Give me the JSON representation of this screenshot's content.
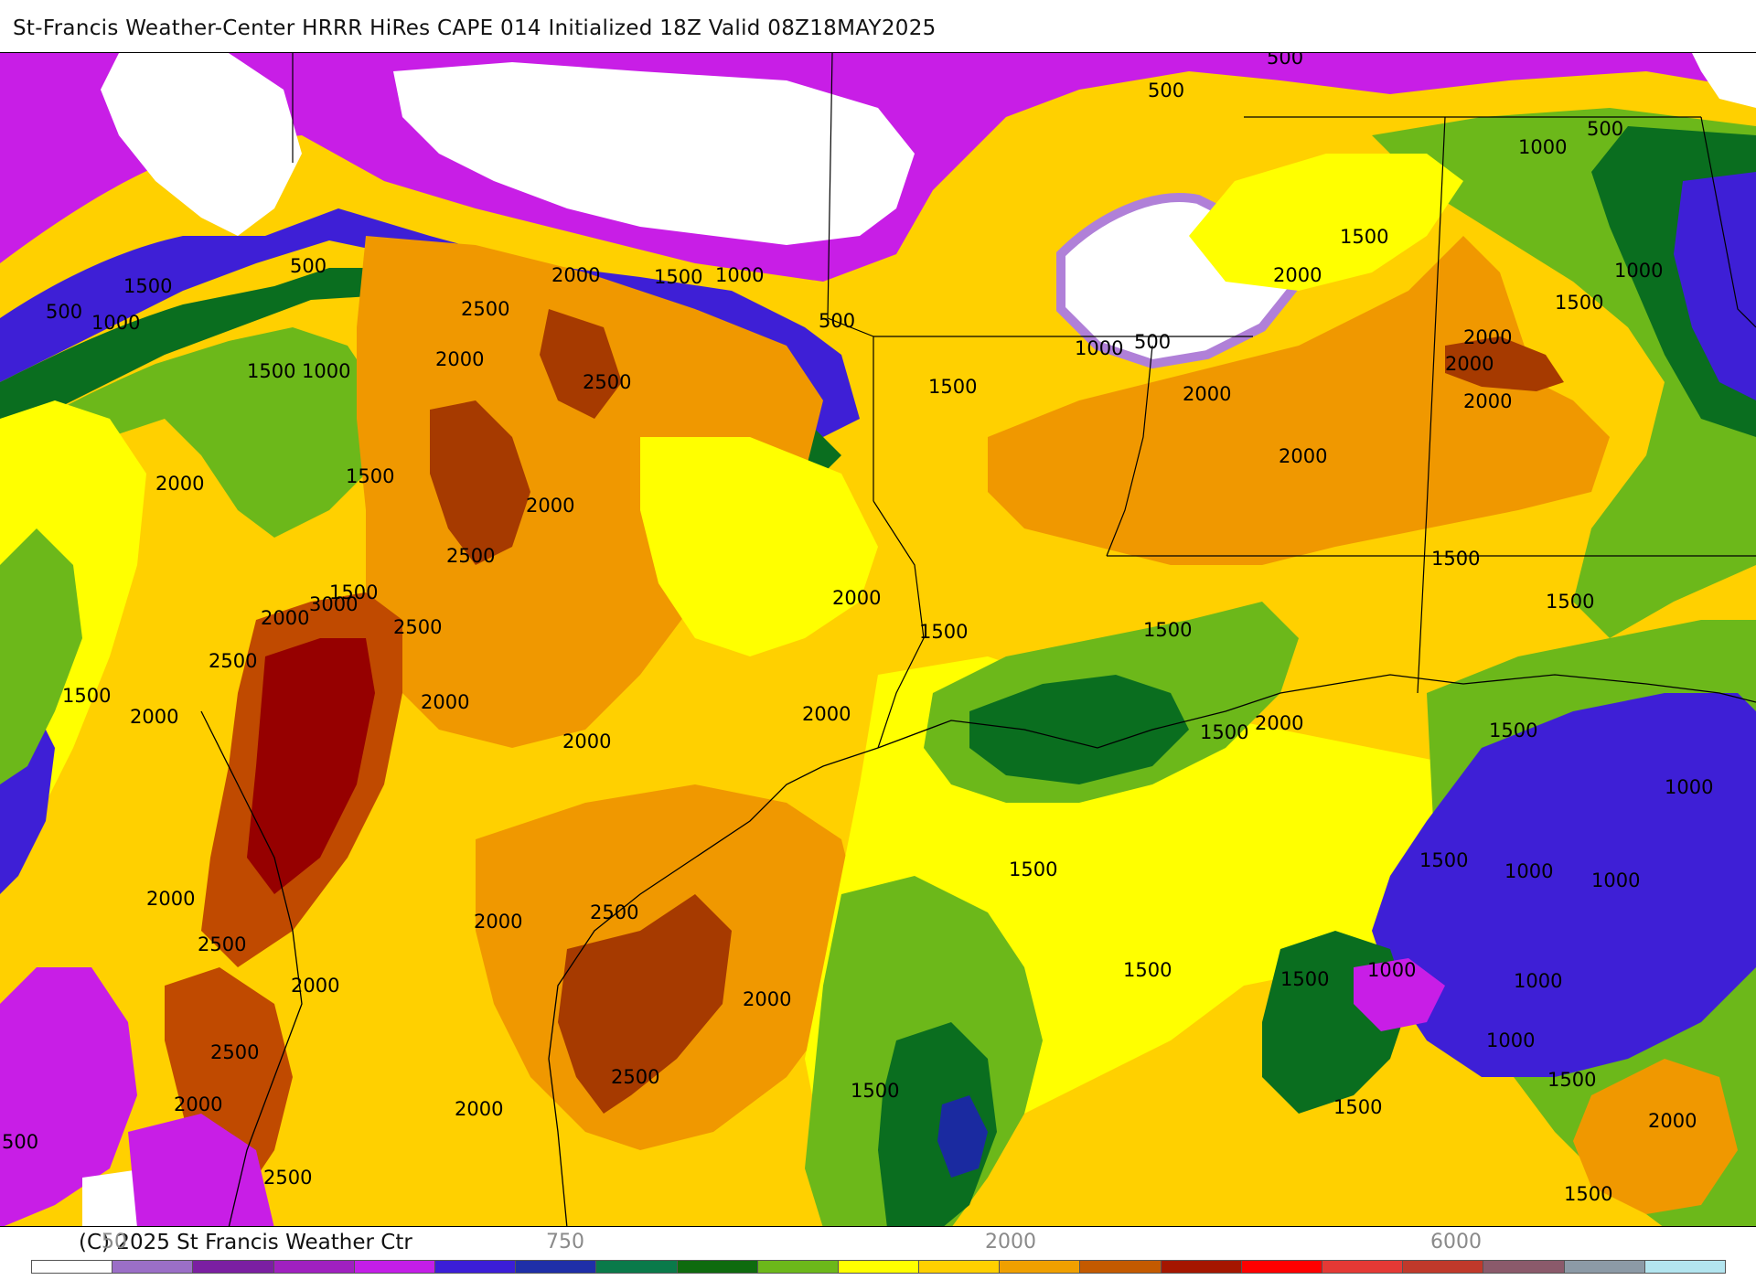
{
  "title": "St-Francis Weather-Center HRRR HiRes CAPE  014 Initialized  18Z Valid 08Z18MAY2025",
  "copyright": "(C) 2025 St Francis Weather Ctr",
  "map": {
    "product": "CAPE",
    "contour_labels": [
      {
        "text": "500"
      },
      {
        "text": "500"
      },
      {
        "text": "500"
      },
      {
        "text": "500"
      },
      {
        "text": "500"
      },
      {
        "text": "500"
      },
      {
        "text": "500"
      },
      {
        "text": "500"
      },
      {
        "text": "1000"
      },
      {
        "text": "1000"
      },
      {
        "text": "1000"
      },
      {
        "text": "1000"
      },
      {
        "text": "1000"
      },
      {
        "text": "1000"
      },
      {
        "text": "1000"
      },
      {
        "text": "1000"
      },
      {
        "text": "1000"
      },
      {
        "text": "1000"
      },
      {
        "text": "1000"
      },
      {
        "text": "1000"
      },
      {
        "text": "1500"
      },
      {
        "text": "1500"
      },
      {
        "text": "1500"
      },
      {
        "text": "1500"
      },
      {
        "text": "1500"
      },
      {
        "text": "1500"
      },
      {
        "text": "1500"
      },
      {
        "text": "1500"
      },
      {
        "text": "1500"
      },
      {
        "text": "1500"
      },
      {
        "text": "1500"
      },
      {
        "text": "1500"
      },
      {
        "text": "1500"
      },
      {
        "text": "1500"
      },
      {
        "text": "1500"
      },
      {
        "text": "1500"
      },
      {
        "text": "1500"
      },
      {
        "text": "1500"
      },
      {
        "text": "1500"
      },
      {
        "text": "1500"
      },
      {
        "text": "1500"
      },
      {
        "text": "1500"
      },
      {
        "text": "1500"
      },
      {
        "text": "2000"
      },
      {
        "text": "2000"
      },
      {
        "text": "2000"
      },
      {
        "text": "2000"
      },
      {
        "text": "2000"
      },
      {
        "text": "2000"
      },
      {
        "text": "2000"
      },
      {
        "text": "2000"
      },
      {
        "text": "2000"
      },
      {
        "text": "2000"
      },
      {
        "text": "2000"
      },
      {
        "text": "2000"
      },
      {
        "text": "2000"
      },
      {
        "text": "2000"
      },
      {
        "text": "2000"
      },
      {
        "text": "2000"
      },
      {
        "text": "2000"
      },
      {
        "text": "2000"
      },
      {
        "text": "2000"
      },
      {
        "text": "2000"
      },
      {
        "text": "2000"
      },
      {
        "text": "2000"
      },
      {
        "text": "2000"
      },
      {
        "text": "2000"
      },
      {
        "text": "2500"
      },
      {
        "text": "2500"
      },
      {
        "text": "2500"
      },
      {
        "text": "2500"
      },
      {
        "text": "2500"
      },
      {
        "text": "2500"
      },
      {
        "text": "2500"
      },
      {
        "text": "2500"
      },
      {
        "text": "2500"
      },
      {
        "text": "2500"
      },
      {
        "text": "3000"
      }
    ]
  },
  "colorbar": {
    "tick_labels": [
      "50",
      "750",
      "2000",
      "6000"
    ],
    "colors": [
      "#ffffff",
      "#9b6fc7",
      "#7b1fa2",
      "#a020c0",
      "#c41ee8",
      "#3b1ed8",
      "#1f2fa8",
      "#0a7a4a",
      "#0e6b0e",
      "#6cb81a",
      "#ffff00",
      "#ffd000",
      "#f0a000",
      "#c45a00",
      "#a51600",
      "#ff0000",
      "#e53935",
      "#c0392b",
      "#8b5a6b",
      "#8c9aa6",
      "#b3e5ef"
    ]
  },
  "fill_colors": {
    "white": "#ffffff",
    "light_purple": "#b080d8",
    "magenta": "#c81ee6",
    "purple": "#9a18d0",
    "blue": "#3e1fd6",
    "dark_blue": "#1a2aa0",
    "dark_green": "#0a6e1f",
    "green": "#6cb81a",
    "yellow": "#ffff00",
    "gold": "#ffcc00",
    "orange": "#f09800",
    "rust": "#c04a00",
    "brown": "#a63a00",
    "dark_red": "#960000"
  }
}
